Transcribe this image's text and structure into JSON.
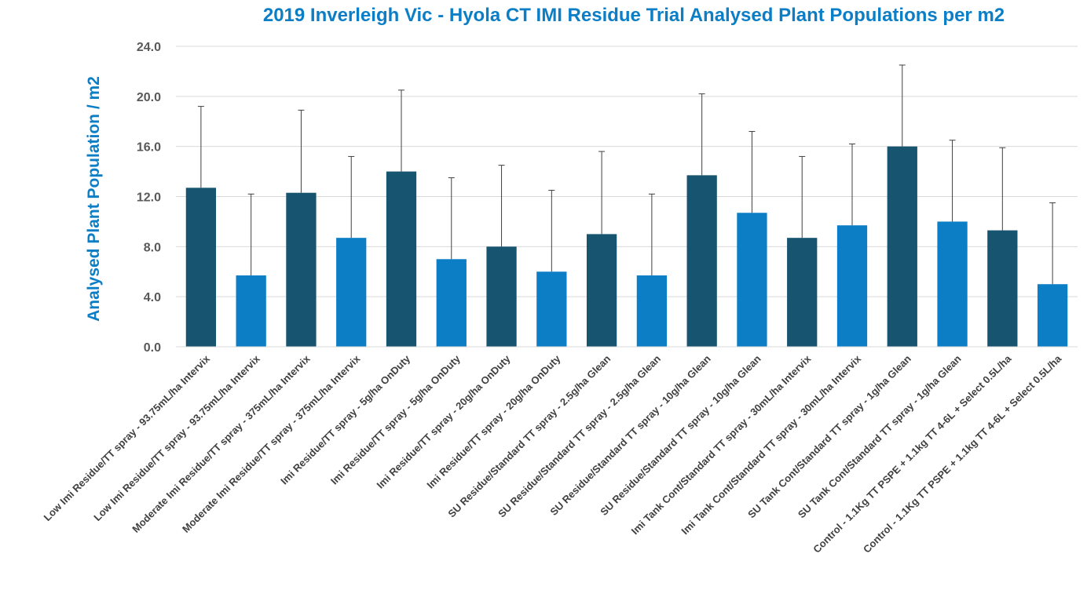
{
  "chart_data": {
    "type": "bar",
    "title": "2019 Inverleigh Vic - Hyola CT IMI Residue Trial Analysed Plant Populations per m2",
    "xlabel": "",
    "ylabel": "Analysed Plant Population / m2",
    "ylim": [
      0,
      24
    ],
    "yticks": [
      "0.0",
      "4.0",
      "8.0",
      "12.0",
      "16.0",
      "20.0",
      "24.0"
    ],
    "grid": true,
    "legend": "none",
    "colors": {
      "dark": "#17546f",
      "light": "#0b7ec6",
      "grid": "#d9d9d9",
      "error": "#404040"
    },
    "categories": [
      "Low Imi Residue/TT spray - 93.75mL/ha Intervix",
      "Low Imi Residue/TT spray - 93.75mL/ha Intervix",
      "Moderate Imi Residue/TT spray - 375mL/ha Intervix",
      "Moderate Imi Residue/TT spray - 375mL/ha Intervix",
      "Imi Residue/TT spray - 5g/ha OnDuty",
      "Imi Residue/TT spray - 5g/ha OnDuty",
      "Imi Residue/TT spray - 20g/ha OnDuty",
      "Imi Residue/TT spray - 20g/ha OnDuty",
      "SU Residue/Standard TT spray - 2.5g/ha Glean",
      "SU Residue/Standard TT spray - 2.5g/ha Glean",
      "SU Residue/Standard TT spray - 10g/ha Glean",
      "SU Residue/Standard TT spray - 10g/ha Glean",
      "Imi Tank Cont/Standard TT spray - 30mL/ha Intervix",
      "Imi Tank Cont/Standard TT spray - 30mL/ha Intervix",
      "SU Tank Cont/Standard TT spray - 1g/ha Glean",
      "SU Tank Cont/Standard TT spray - 1g/ha Glean",
      "Control - 1.1Kg TT PSPE + 1.1kg TT 4-6L + Select 0.5L/ha",
      "Control - 1.1Kg TT PSPE + 1.1kg TT 4-6L + Select 0.5L/ha"
    ],
    "values": [
      12.7,
      5.7,
      12.3,
      8.7,
      14.0,
      7.0,
      8.0,
      6.0,
      9.0,
      5.7,
      13.7,
      10.7,
      8.7,
      9.7,
      16.0,
      10.0,
      9.3,
      5.0
    ],
    "error_upper": [
      19.2,
      12.2,
      18.9,
      15.2,
      20.5,
      13.5,
      14.5,
      12.5,
      15.6,
      12.2,
      20.2,
      17.2,
      15.2,
      16.2,
      22.5,
      16.5,
      15.9,
      11.5
    ],
    "bar_color_groups": [
      "dark",
      "light",
      "dark",
      "light",
      "dark",
      "light",
      "dark",
      "light",
      "dark",
      "light",
      "dark",
      "light",
      "dark",
      "light",
      "dark",
      "light",
      "dark",
      "light"
    ]
  }
}
